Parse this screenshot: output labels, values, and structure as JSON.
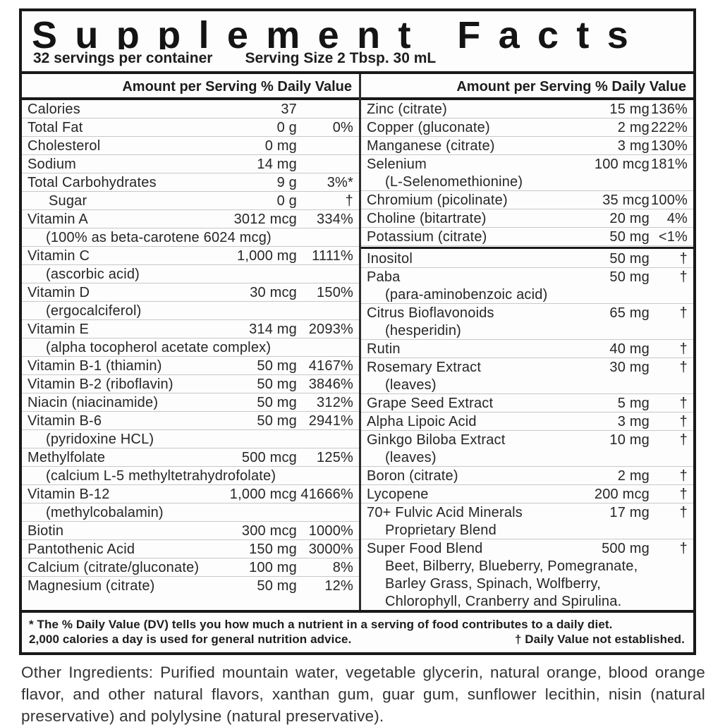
{
  "label": {
    "title": "Supplement Facts",
    "servings": "32 servings per container",
    "serving_size": "Serving Size 2 Tbsp. 30 mL",
    "column_header": "Amount per Serving % Daily Value"
  },
  "columns": {
    "left": {
      "rows": [
        {
          "name": "Calories",
          "amount": "37",
          "dv": ""
        },
        {
          "name": "Total Fat",
          "amount": "0 g",
          "dv": "0%"
        },
        {
          "name": "Cholesterol",
          "amount": "0 mg",
          "dv": ""
        },
        {
          "name": "Sodium",
          "amount": "14 mg",
          "dv": ""
        },
        {
          "name": "Total Carbohydrates",
          "amount": "9 g",
          "dv": "3%*"
        },
        {
          "name": "Sugar",
          "amount": "0 g",
          "dv": "†",
          "indent": true
        },
        {
          "name": "Vitamin A",
          "amount": "3012 mcg",
          "dv": "334%",
          "subs": [
            "(100% as beta-carotene 6024 mcg)"
          ]
        },
        {
          "name": "Vitamin C",
          "amount": "1,000 mg",
          "dv": "1111%",
          "subs": [
            "(ascorbic acid)"
          ]
        },
        {
          "name": "Vitamin D",
          "amount": "30 mcg",
          "dv": "150%",
          "subs": [
            "(ergocalciferol)"
          ]
        },
        {
          "name": "Vitamin E",
          "amount": "314 mg",
          "dv": "2093%",
          "subs": [
            "(alpha tocopherol acetate complex)"
          ]
        },
        {
          "name": "Vitamin B-1 (thiamin)",
          "amount": "50 mg",
          "dv": "4167%"
        },
        {
          "name": "Vitamin B-2 (riboflavin)",
          "amount": "50 mg",
          "dv": "3846%"
        },
        {
          "name": "Niacin (niacinamide)",
          "amount": "50 mg",
          "dv": "312%"
        },
        {
          "name": "Vitamin B-6",
          "amount": "50 mg",
          "dv": "2941%",
          "subs": [
            "(pyridoxine HCL)"
          ]
        },
        {
          "name": "Methylfolate",
          "amount": "500 mcg",
          "dv": "125%",
          "subs": [
            "(calcium L-5 methyltetrahydrofolate)"
          ]
        },
        {
          "name": "Vitamin B-12",
          "amount": "1,000 mcg",
          "dv": "41666%",
          "subs": [
            "(methylcobalamin)"
          ]
        },
        {
          "name": "Biotin",
          "amount": "300 mcg",
          "dv": "1000%"
        },
        {
          "name": "Pantothenic Acid",
          "amount": "150 mg",
          "dv": "3000%"
        },
        {
          "name": "Calcium (citrate/gluconate)",
          "amount": "100 mg",
          "dv": "8%"
        },
        {
          "name": "Magnesium (citrate)",
          "amount": "50 mg",
          "dv": "12%"
        }
      ]
    },
    "right": {
      "rows": [
        {
          "name": "Zinc (citrate)",
          "amount": "15 mg",
          "dv": "136%"
        },
        {
          "name": "Copper (gluconate)",
          "amount": "2 mg",
          "dv": "222%"
        },
        {
          "name": "Manganese (citrate)",
          "amount": "3 mg",
          "dv": "130%"
        },
        {
          "name": "Selenium",
          "amount": "100 mcg",
          "dv": "181%",
          "subs": [
            "(L-Selenomethionine)"
          ]
        },
        {
          "name": "Chromium (picolinate)",
          "amount": "35 mcg",
          "dv": "100%"
        },
        {
          "name": "Choline (bitartrate)",
          "amount": "20 mg",
          "dv": "4%"
        },
        {
          "name": "Potassium (citrate)",
          "amount": "50 mg",
          "dv": "<1%"
        },
        {
          "name": "Inositol",
          "amount": "50 mg",
          "dv": "†",
          "divider_before": true
        },
        {
          "name": "Paba",
          "amount": "50 mg",
          "dv": "†",
          "subs": [
            "(para-aminobenzoic acid)"
          ]
        },
        {
          "name": "Citrus Bioflavonoids",
          "amount": "65 mg",
          "dv": "†",
          "subs": [
            "(hesperidin)"
          ]
        },
        {
          "name": "Rutin",
          "amount": "40 mg",
          "dv": "†"
        },
        {
          "name": "Rosemary Extract",
          "amount": "30 mg",
          "dv": "†",
          "subs": [
            "(leaves)"
          ]
        },
        {
          "name": "Grape Seed Extract",
          "amount": "5 mg",
          "dv": "†"
        },
        {
          "name": "Alpha Lipoic Acid",
          "amount": "3 mg",
          "dv": "†"
        },
        {
          "name": "Ginkgo Biloba Extract",
          "amount": "10 mg",
          "dv": "†",
          "subs": [
            "(leaves)"
          ]
        },
        {
          "name": "Boron (citrate)",
          "amount": "2 mg",
          "dv": "†"
        },
        {
          "name": "Lycopene",
          "amount": "200 mcg",
          "dv": "†"
        },
        {
          "name": "70+ Fulvic Acid Minerals",
          "amount": "17 mg",
          "dv": "†",
          "subs": [
            "Proprietary Blend"
          ]
        },
        {
          "name": "Super Food Blend",
          "amount": "500 mg",
          "dv": "†",
          "subs": [
            "Beet, Bilberry, Blueberry, Pomegranate,",
            "Barley Grass, Spinach, Wolfberry,",
            "Chlorophyll, Cranberry and Spirulina."
          ]
        }
      ]
    }
  },
  "footnote": {
    "line1": "* The % Daily Value (DV) tells you how much a nutrient in a serving of food contributes to a daily diet.",
    "line2": "2,000 calories a day is used for general nutrition advice.",
    "dagger_note": "† Daily Value not established."
  },
  "other_ingredients": {
    "text": "Other Ingredients: Purified mountain water, vegetable glycerin, natural orange, blood orange flavor, and other natural flavors, xanthan gum, guar gum, sunflower lecithin, nisin (natural preservative) and polylysine (natural preservative)."
  },
  "colors": {
    "border": "#191919",
    "text": "#262626",
    "separator": "#c8c8c8",
    "background": "#ffffff"
  }
}
